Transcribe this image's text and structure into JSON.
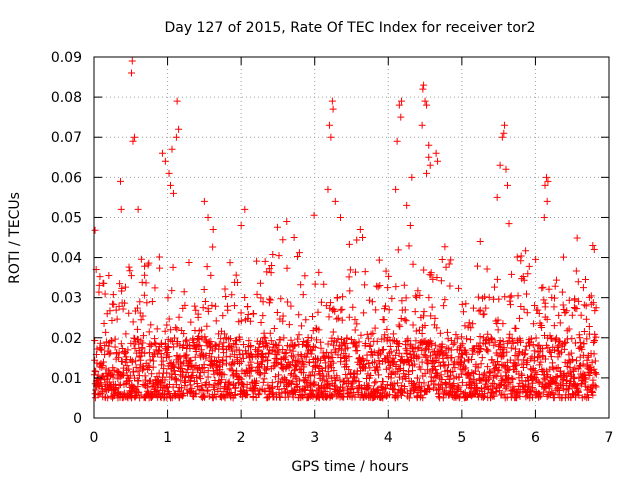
{
  "chart_data": {
    "type": "scatter",
    "title": "Day 127 of 2015, Rate Of TEC Index for receiver tor2",
    "xlabel": "GPS time / hours",
    "ylabel": "ROTI / TECUs",
    "xlim": [
      0,
      7
    ],
    "ylim": [
      0,
      0.09
    ],
    "xticks": [
      0,
      1,
      2,
      3,
      4,
      5,
      6,
      7
    ],
    "xtick_labels": [
      "0",
      "1",
      "2",
      "3",
      "4",
      "5",
      "6",
      "7"
    ],
    "yticks": [
      0,
      0.01,
      0.02,
      0.03,
      0.04,
      0.05,
      0.06,
      0.07,
      0.08,
      0.09
    ],
    "ytick_labels": [
      "0",
      "0.01",
      "0.02",
      "0.03",
      "0.04",
      "0.05",
      "0.06",
      "0.07",
      "0.08",
      "0.09"
    ],
    "grid": true,
    "marker": "+",
    "color": "#ff0000",
    "x_range_hours": [
      0,
      6.83
    ],
    "baseline_band": [
      0.005,
      0.02
    ],
    "series": [
      {
        "name": "ROTI",
        "points": [
          [
            0.52,
            0.089
          ],
          [
            0.51,
            0.086
          ],
          [
            0.55,
            0.07
          ],
          [
            0.53,
            0.069
          ],
          [
            1.13,
            0.079
          ],
          [
            1.15,
            0.072
          ],
          [
            1.12,
            0.07
          ],
          [
            1.06,
            0.067
          ],
          [
            0.93,
            0.066
          ],
          [
            0.97,
            0.064
          ],
          [
            1.02,
            0.061
          ],
          [
            1.04,
            0.058
          ],
          [
            1.08,
            0.056
          ],
          [
            0.36,
            0.059
          ],
          [
            0.37,
            0.052
          ],
          [
            0.6,
            0.052
          ],
          [
            1.5,
            0.054
          ],
          [
            1.55,
            0.05
          ],
          [
            1.62,
            0.047
          ],
          [
            2.0,
            0.048
          ],
          [
            3.24,
            0.079
          ],
          [
            3.25,
            0.077
          ],
          [
            3.2,
            0.073
          ],
          [
            3.22,
            0.07
          ],
          [
            3.18,
            0.057
          ],
          [
            3.28,
            0.054
          ],
          [
            3.35,
            0.05
          ],
          [
            4.18,
            0.079
          ],
          [
            4.15,
            0.078
          ],
          [
            4.17,
            0.075
          ],
          [
            4.12,
            0.069
          ],
          [
            4.1,
            0.057
          ],
          [
            4.32,
            0.06
          ],
          [
            4.25,
            0.053
          ],
          [
            4.48,
            0.083
          ],
          [
            4.47,
            0.082
          ],
          [
            4.5,
            0.079
          ],
          [
            4.52,
            0.078
          ],
          [
            4.46,
            0.073
          ],
          [
            4.55,
            0.068
          ],
          [
            4.55,
            0.065
          ],
          [
            4.57,
            0.063
          ],
          [
            4.52,
            0.061
          ],
          [
            4.65,
            0.066
          ],
          [
            4.67,
            0.064
          ],
          [
            5.58,
            0.073
          ],
          [
            5.57,
            0.071
          ],
          [
            5.55,
            0.07
          ],
          [
            5.52,
            0.063
          ],
          [
            5.6,
            0.062
          ],
          [
            5.62,
            0.058
          ],
          [
            5.48,
            0.055
          ],
          [
            6.15,
            0.06
          ],
          [
            6.17,
            0.059
          ],
          [
            6.13,
            0.058
          ],
          [
            6.16,
            0.054
          ],
          [
            6.12,
            0.05
          ],
          [
            2.62,
            0.049
          ],
          [
            2.05,
            0.052
          ],
          [
            2.72,
            0.045
          ],
          [
            3.62,
            0.047
          ],
          [
            3.65,
            0.045
          ],
          [
            4.3,
            0.048
          ],
          [
            5.25,
            0.044
          ],
          [
            6.78,
            0.043
          ],
          [
            6.8,
            0.042
          ]
        ]
      }
    ]
  }
}
